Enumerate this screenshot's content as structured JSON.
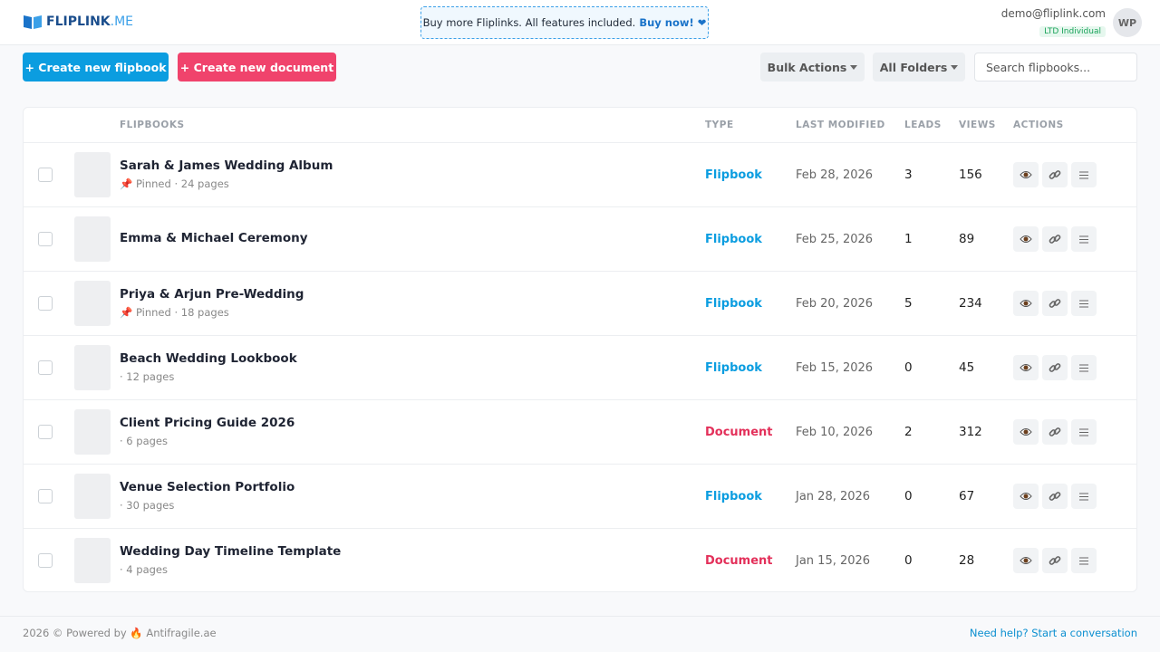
{
  "header": {
    "logo_main": "FLIPLINK",
    "logo_suffix": ".ME",
    "banner_text": "Buy more Fliplinks. All features included.",
    "banner_link": "Buy now! ❤",
    "email": "demo@fliplink.com",
    "plan": "LTD Individual",
    "avatar": "WP"
  },
  "toolbar": {
    "create_flipbook": "+ Create new flipbook",
    "create_document": "+ Create new document",
    "bulk_actions": "Bulk Actions",
    "all_folders": "All Folders",
    "search_placeholder": "Search flipbooks..."
  },
  "table": {
    "columns": [
      "FLIPBOOKS",
      "TYPE",
      "LAST MODIFIED",
      "LEADS",
      "VIEWS",
      "ACTIONS"
    ],
    "rows": [
      {
        "title": "Sarah & James Wedding Album",
        "meta": "📌 Pinned · 24 pages",
        "type": "Flipbook",
        "type_color": "#0b9de0",
        "modified": "Feb 28, 2026",
        "leads": 3,
        "views": 156
      },
      {
        "title": "Emma & Michael Ceremony",
        "type": "Flipbook",
        "type_color": "#0b9de0",
        "modified": "Feb 25, 2026",
        "leads": 1,
        "views": 89
      },
      {
        "title": "Priya & Arjun Pre-Wedding",
        "meta": "📌 Pinned · 18 pages",
        "type": "Flipbook",
        "type_color": "#0b9de0",
        "modified": "Feb 20, 2026",
        "leads": 5,
        "views": 234
      },
      {
        "title": "Beach Wedding Lookbook",
        "meta": "· 12 pages",
        "type": "Flipbook",
        "type_color": "#0b9de0",
        "modified": "Feb 15, 2026",
        "leads": 0,
        "views": 45
      },
      {
        "title": "Client Pricing Guide 2026",
        "meta": "· 6 pages",
        "type": "Document",
        "type_color": "#e3305a",
        "modified": "Feb 10, 2026",
        "leads": 2,
        "views": 312
      },
      {
        "title": "Venue Selection Portfolio",
        "meta": "· 30 pages",
        "type": "Flipbook",
        "type_color": "#0b9de0",
        "modified": "Jan 28, 2026",
        "leads": 0,
        "views": 67
      },
      {
        "title": "Wedding Day Timeline Template",
        "meta": "· 4 pages",
        "type": "Document",
        "type_color": "#e3305a",
        "modified": "Jan 15, 2026",
        "leads": 0,
        "views": 28
      }
    ]
  },
  "footer": {
    "left": "2026 © Powered by 🔥 Antifragile.ae",
    "right": "Need help? Start a conversation"
  }
}
